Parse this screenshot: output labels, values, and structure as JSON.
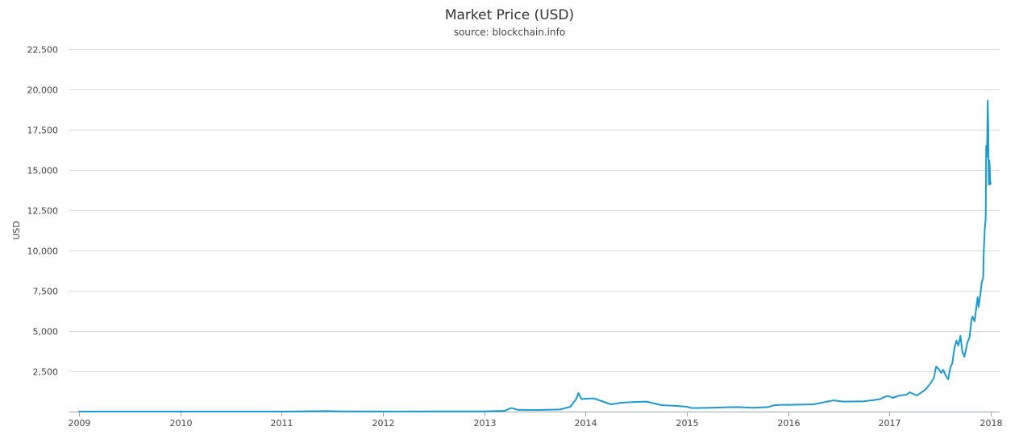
{
  "chart_data": {
    "type": "line",
    "title": "Market Price (USD)",
    "subtitle": "source: blockchain.info",
    "xlabel": "",
    "ylabel": "USD",
    "xlim": [
      2009.0,
      2018.05
    ],
    "ylim": [
      0,
      22500
    ],
    "y_ticks": [
      2500,
      5000,
      7500,
      10000,
      12500,
      15000,
      17500,
      20000,
      22500
    ],
    "y_tick_labels": [
      "2,500",
      "5,000",
      "7,500",
      "10,000",
      "12,500",
      "15,000",
      "17,500",
      "20,000",
      "22,500"
    ],
    "x_ticks": [
      2009,
      2010,
      2011,
      2012,
      2013,
      2014,
      2015,
      2016,
      2017,
      2018
    ],
    "x_tick_labels": [
      "2009",
      "2010",
      "2011",
      "2012",
      "2013",
      "2014",
      "2015",
      "2016",
      "2017",
      "2018"
    ],
    "grid": true,
    "color": "#1a9bd2",
    "series": [
      {
        "name": "",
        "x": [
          2009.0,
          2010.5,
          2011.0,
          2011.45,
          2011.6,
          2012.0,
          2012.5,
          2013.0,
          2013.2,
          2013.27,
          2013.33,
          2013.5,
          2013.75,
          2013.85,
          2013.91,
          2013.93,
          2013.96,
          2014.0,
          2014.08,
          2014.16,
          2014.25,
          2014.35,
          2014.5,
          2014.6,
          2014.75,
          2014.9,
          2015.0,
          2015.05,
          2015.25,
          2015.5,
          2015.65,
          2015.8,
          2015.85,
          2015.92,
          2016.0,
          2016.25,
          2016.45,
          2016.5,
          2016.55,
          2016.75,
          2016.9,
          2016.97,
          2017.0,
          2017.03,
          2017.1,
          2017.17,
          2017.2,
          2017.27,
          2017.33,
          2017.36,
          2017.41,
          2017.44,
          2017.46,
          2017.49,
          2017.51,
          2017.53,
          2017.55,
          2017.58,
          2017.6,
          2017.62,
          2017.64,
          2017.66,
          2017.68,
          2017.7,
          2017.72,
          2017.74,
          2017.77,
          2017.79,
          2017.81,
          2017.82,
          2017.84,
          2017.85,
          2017.87,
          2017.88,
          2017.9,
          2017.91,
          2017.925,
          2017.93,
          2017.94,
          2017.95,
          2017.955,
          2017.96,
          2017.965,
          2017.97,
          2017.975,
          2017.98,
          2017.985,
          2017.99,
          2017.995,
          2018.0
        ],
        "values": [
          0,
          0,
          1,
          28,
          12,
          6,
          8,
          15,
          50,
          220,
          110,
          95,
          130,
          300,
          800,
          1150,
          780,
          800,
          820,
          650,
          450,
          550,
          600,
          620,
          400,
          350,
          300,
          220,
          240,
          280,
          240,
          280,
          380,
          420,
          420,
          450,
          700,
          650,
          620,
          640,
          760,
          960,
          950,
          850,
          1000,
          1050,
          1200,
          1000,
          1250,
          1400,
          1800,
          2100,
          2800,
          2600,
          2400,
          2600,
          2300,
          2000,
          2700,
          3000,
          3900,
          4400,
          4100,
          4700,
          3700,
          3400,
          4300,
          4600,
          5700,
          5900,
          5600,
          6100,
          7100,
          6500,
          7400,
          8000,
          8300,
          9800,
          11300,
          12000,
          16500,
          15800,
          17000,
          19300,
          17500,
          14100,
          15600,
          15200,
          14100,
          14200
        ]
      }
    ]
  }
}
